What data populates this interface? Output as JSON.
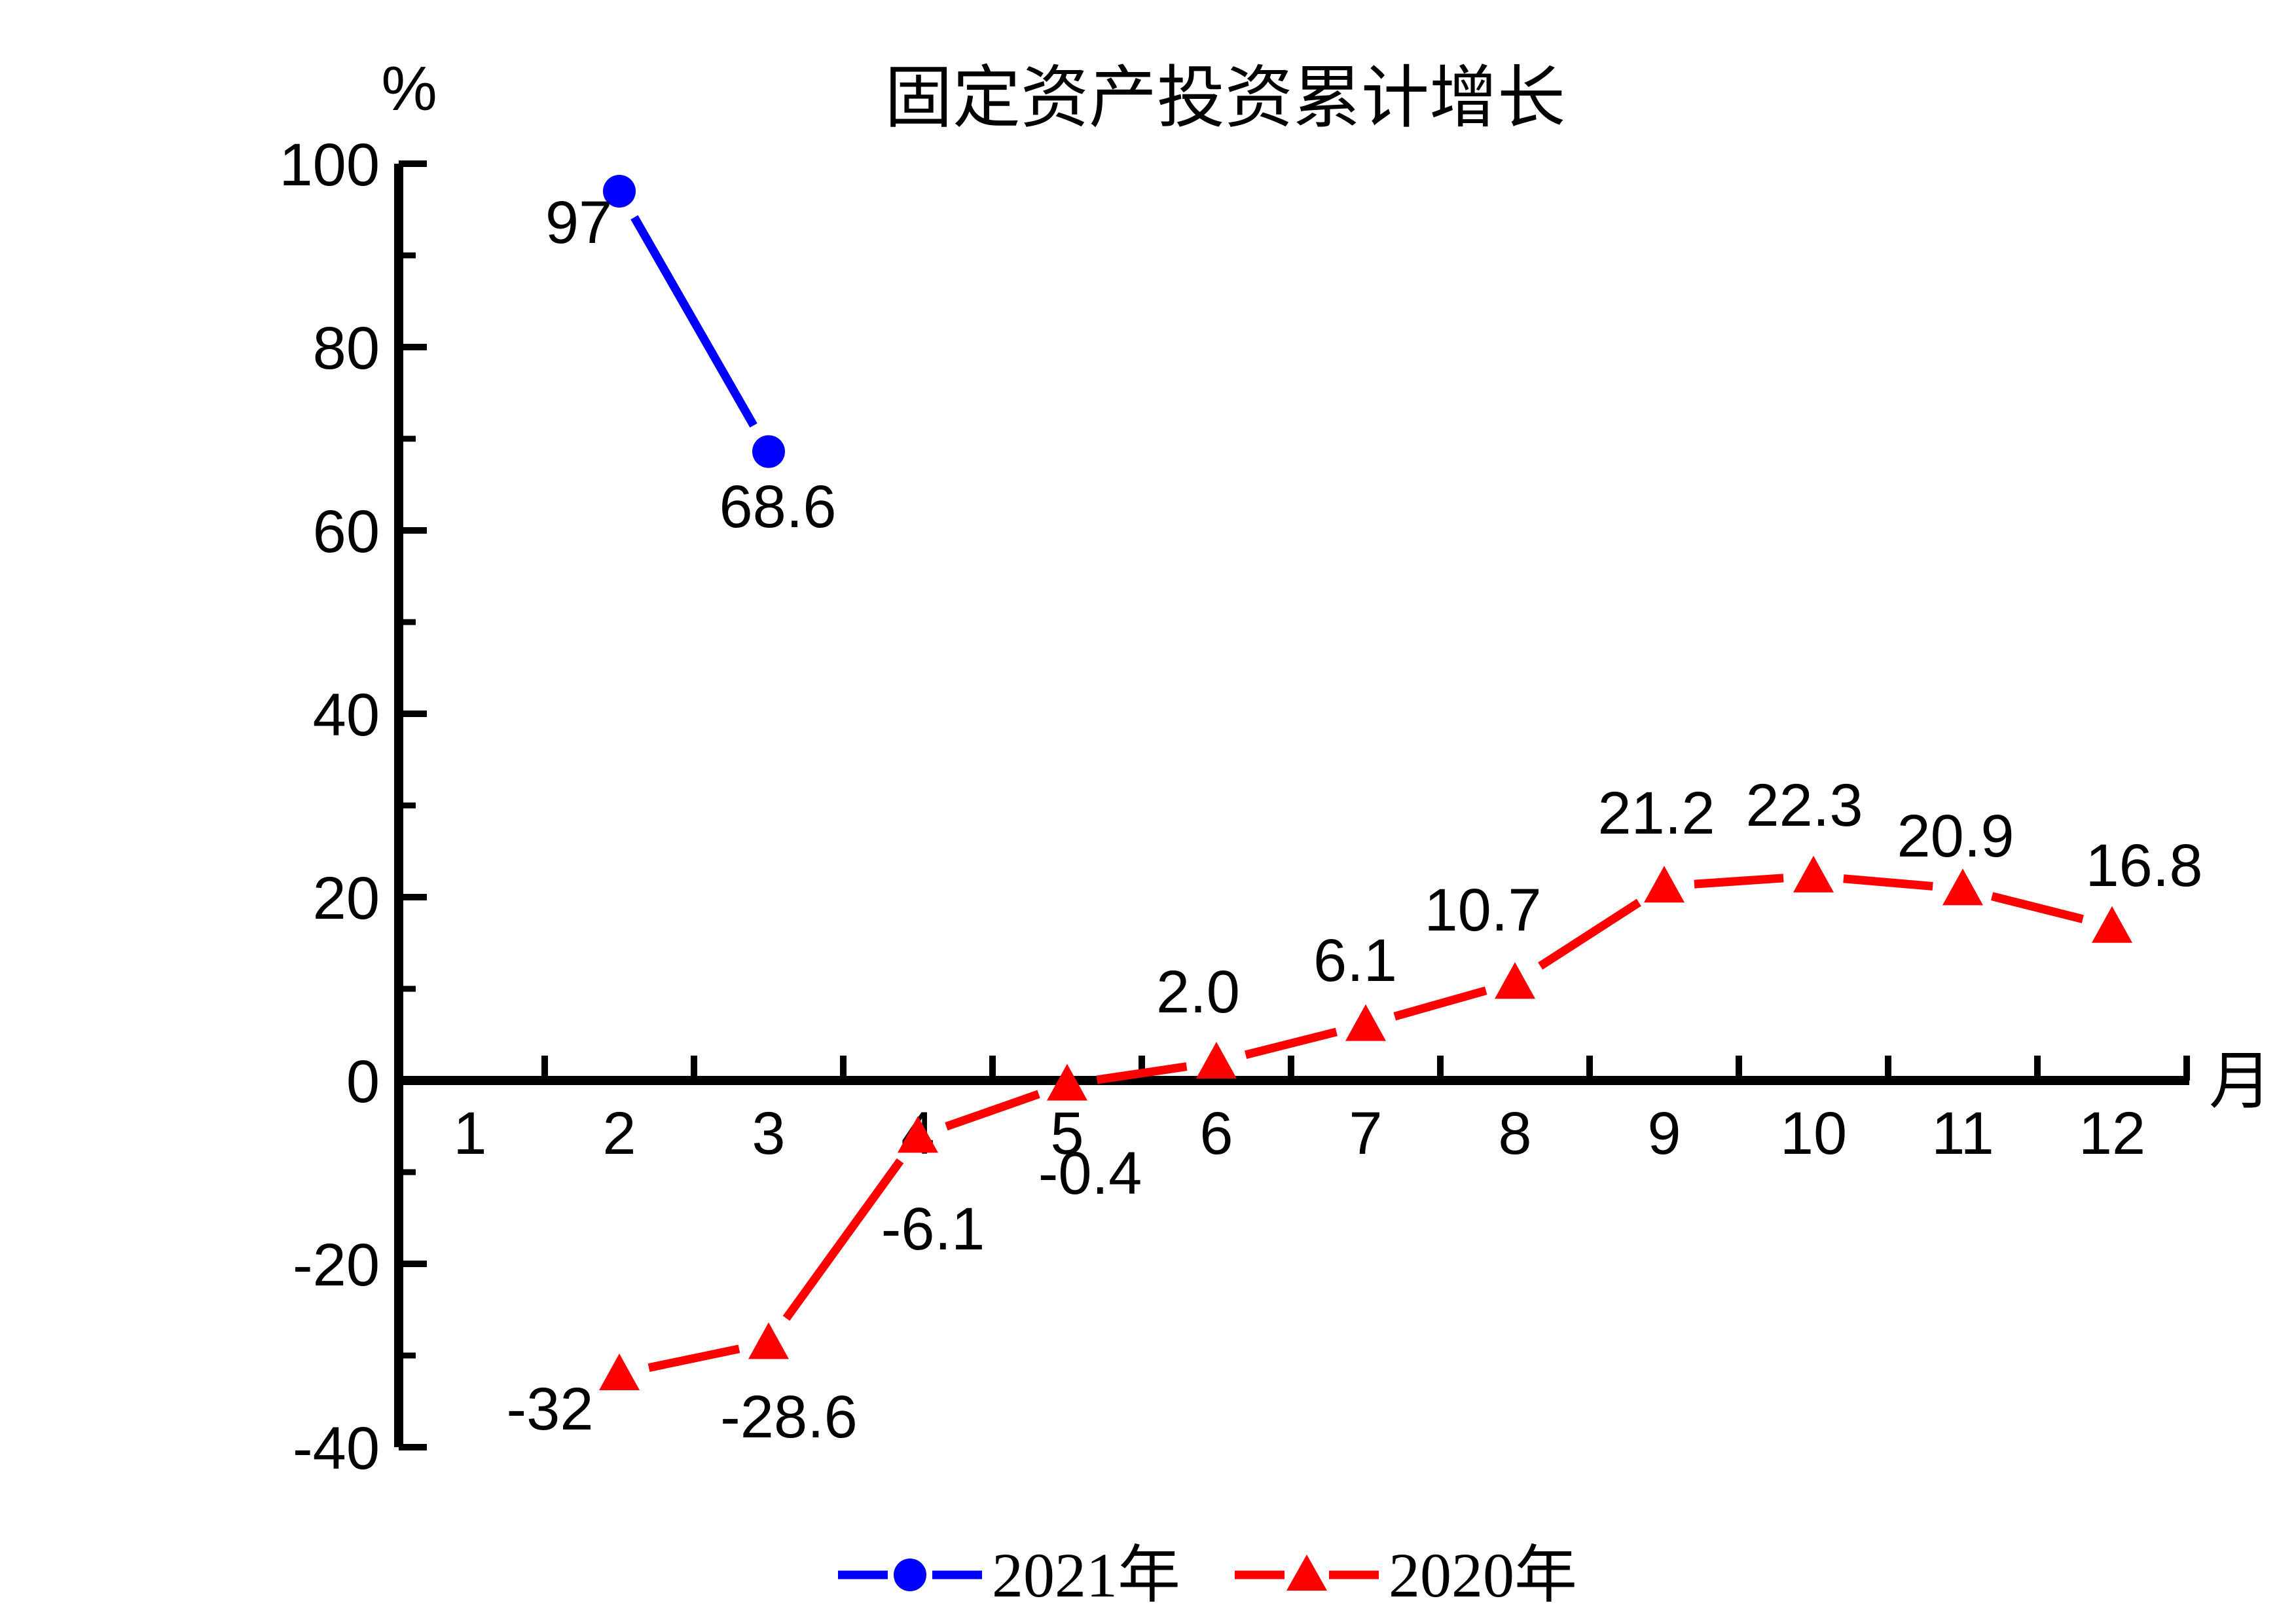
{
  "chart_data": {
    "type": "line",
    "title": "固定资产投资累计增长",
    "xlabel": "月",
    "ylabel": "%",
    "ylim": [
      -40,
      100
    ],
    "y_minor_step": 10,
    "grid": false,
    "legend_position": "bottom",
    "x_ticks": [
      {
        "m": 1,
        "label": "1"
      },
      {
        "m": 2,
        "label": "2"
      },
      {
        "m": 3,
        "label": "3"
      },
      {
        "m": 4,
        "label": "4"
      },
      {
        "m": 5,
        "label": "5"
      },
      {
        "m": 6,
        "label": "6"
      },
      {
        "m": 7,
        "label": "7"
      },
      {
        "m": 8,
        "label": "8"
      },
      {
        "m": 9,
        "label": "9"
      },
      {
        "m": 10,
        "label": "10"
      },
      {
        "m": 11,
        "label": "11"
      },
      {
        "m": 12,
        "label": "12"
      }
    ],
    "y_ticks": [
      {
        "v": 100,
        "label": "100"
      },
      {
        "v": 80,
        "label": "80"
      },
      {
        "v": 60,
        "label": "60"
      },
      {
        "v": 40,
        "label": "40"
      },
      {
        "v": 20,
        "label": "20"
      },
      {
        "v": 0,
        "label": "0"
      },
      {
        "v": -20,
        "label": "-20"
      },
      {
        "v": -40,
        "label": "-40"
      }
    ],
    "series": [
      {
        "name": "2021年",
        "color": "#0000fe",
        "marker": "circle",
        "points": [
          {
            "x": 2,
            "y": 97,
            "label": "97"
          },
          {
            "x": 3,
            "y": 68.6,
            "label": "68.6"
          }
        ]
      },
      {
        "name": "2020年",
        "color": "#fe0000",
        "marker": "triangle",
        "points": [
          {
            "x": 2,
            "y": -32,
            "label": "-32"
          },
          {
            "x": 3,
            "y": -28.6,
            "label": "-28.6"
          },
          {
            "x": 4,
            "y": -6.1,
            "label": "-6.1"
          },
          {
            "x": 5,
            "y": -0.4,
            "label": "-0.4"
          },
          {
            "x": 6,
            "y": 2,
            "label": "2.0"
          },
          {
            "x": 7,
            "y": 6.1,
            "label": "6.1"
          },
          {
            "x": 8,
            "y": 10.7,
            "label": "10.7"
          },
          {
            "x": 9,
            "y": 21.2,
            "label": "21.2"
          },
          {
            "x": 10,
            "y": 22.3,
            "label": "22.3"
          },
          {
            "x": 11,
            "y": 20.9,
            "label": "20.9"
          },
          {
            "x": 12,
            "y": 16.8,
            "label": "16.8"
          }
        ]
      }
    ]
  }
}
